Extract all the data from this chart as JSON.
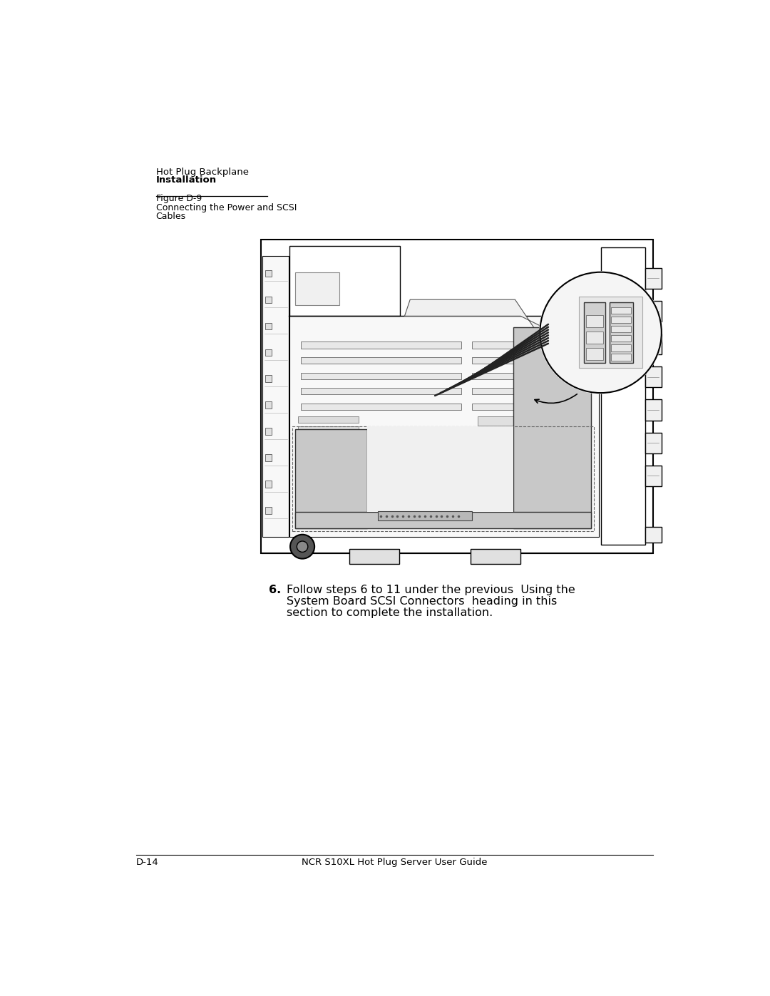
{
  "background_color": "#ffffff",
  "page_width": 10.8,
  "page_height": 13.97,
  "header_line1": "Hot Plug Backplane",
  "header_line2": "Installation",
  "figure_label": "Figure D-9",
  "figure_caption_line1": "Connecting the Power and SCSI",
  "figure_caption_line2": "Cables",
  "step_number": "6.",
  "step_line1": "Follow steps 6 to 11 under the previous  Using the",
  "step_line2": "System Board SCSI Connectors  heading in this",
  "step_line3": "section to complete the installation.",
  "footer_left": "D-14",
  "footer_center": "NCR S10XL Hot Plug Server User Guide",
  "text_color": "#000000",
  "line_color": "#000000",
  "gray_light": "#d8d8d8",
  "gray_mid": "#c0c0c0",
  "gray_dark": "#888888",
  "white": "#ffffff"
}
